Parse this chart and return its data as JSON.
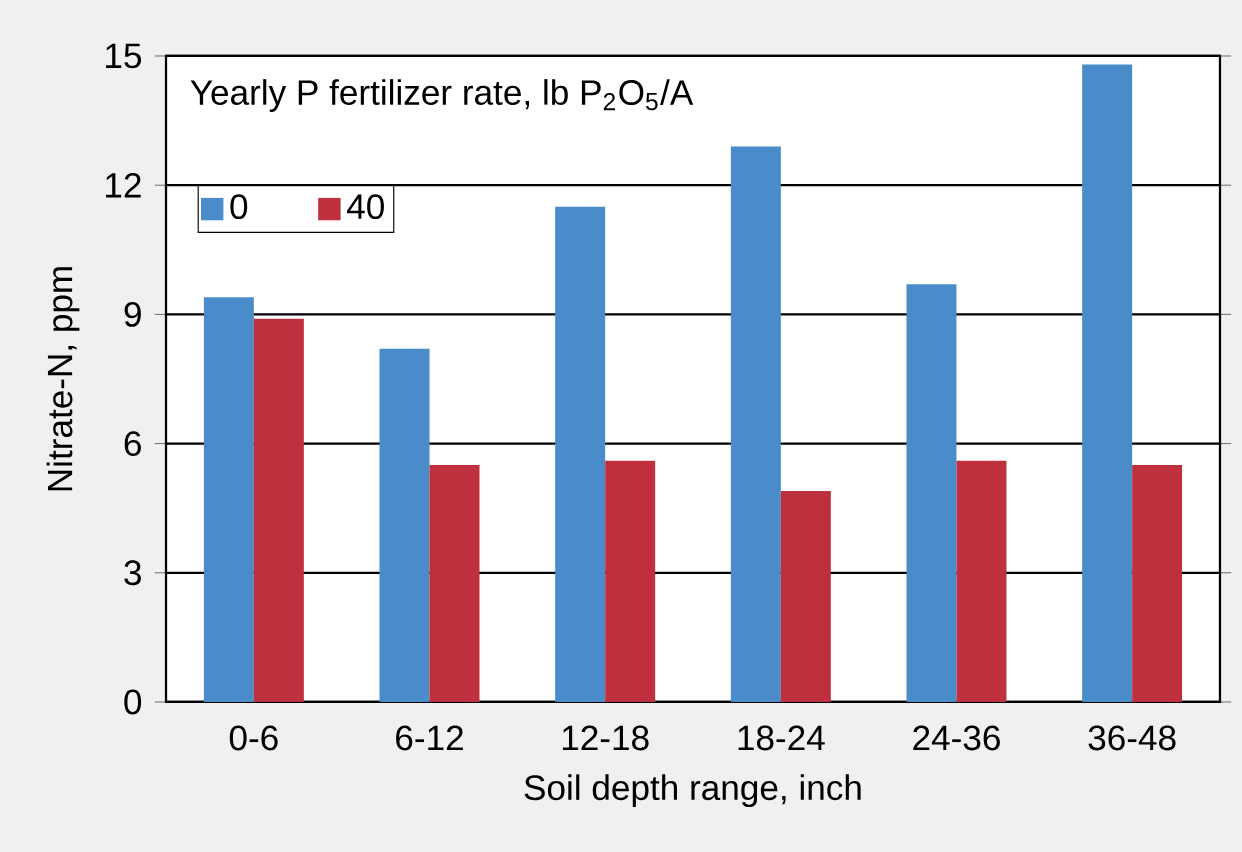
{
  "chart_data": {
    "type": "bar",
    "xlabel": "Soil depth range, inch",
    "ylabel": "Nitrate-N, ppm",
    "legend_title": "Yearly P fertilizer rate, lb P$_{2}$O$_{5}$/A",
    "categories": [
      "0-6",
      "6-12",
      "12-18",
      "18-24",
      "24-36",
      "36-48"
    ],
    "series": [
      {
        "name": "0",
        "color": "#4a8cc9",
        "values": [
          9.4,
          8.2,
          11.5,
          12.9,
          9.7,
          14.8
        ]
      },
      {
        "name": "40",
        "color": "#be303e",
        "values": [
          8.9,
          5.5,
          5.6,
          4.9,
          5.6,
          5.5
        ]
      }
    ],
    "ylim": [
      0,
      15
    ],
    "yticks": [
      0,
      3,
      6,
      9,
      12,
      15
    ],
    "grid": "y",
    "legend": "top left"
  }
}
